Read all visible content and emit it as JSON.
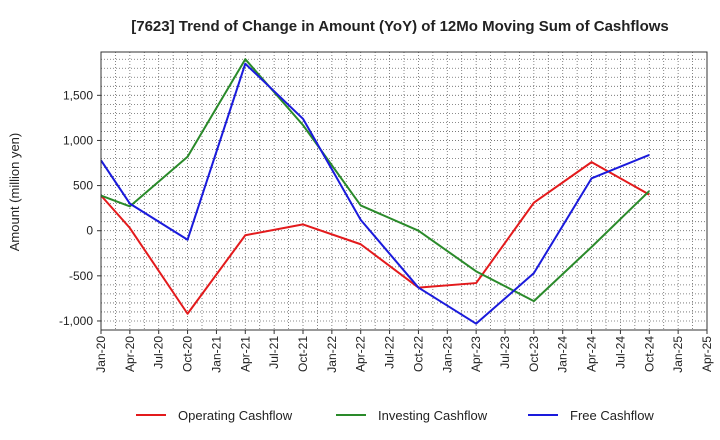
{
  "chart_data": {
    "type": "line",
    "title": "[7623]  Trend of Change in Amount (YoY) of 12Mo Moving Sum of Cashflows",
    "xlabel": "",
    "ylabel": "Amount (million yen)",
    "categories": [
      "Jan-20",
      "Apr-20",
      "Jul-20",
      "Oct-20",
      "Jan-21",
      "Apr-21",
      "Jul-21",
      "Oct-21",
      "Jan-22",
      "Apr-22",
      "Jul-22",
      "Oct-22",
      "Jan-23",
      "Apr-23",
      "Jul-23",
      "Oct-23",
      "Jan-24",
      "Apr-24",
      "Jul-24",
      "Oct-24",
      "Jan-25",
      "Apr-25"
    ],
    "ylim": [
      -1100,
      1980
    ],
    "yticks": [
      1500,
      1000,
      500,
      0,
      -500,
      -1000
    ],
    "ytick_labels": [
      "1,500",
      "1,000",
      "500",
      "0",
      "-500",
      "-1,000"
    ],
    "grid": true,
    "legend_position": "bottom",
    "series": [
      {
        "name": "Operating Cashflow",
        "color": "#e31a1c",
        "points": [
          [
            "Jan-20",
            390
          ],
          [
            "Apr-20",
            30
          ],
          [
            "Oct-20",
            -920
          ],
          [
            "Apr-21",
            -50
          ],
          [
            "Oct-21",
            70
          ],
          [
            "Apr-22",
            -150
          ],
          [
            "Oct-22",
            -630
          ],
          [
            "Apr-23",
            -580
          ],
          [
            "Oct-23",
            310
          ],
          [
            "Apr-24",
            760
          ],
          [
            "Oct-24",
            400
          ]
        ]
      },
      {
        "name": "Investing Cashflow",
        "color": "#2a8a2a",
        "points": [
          [
            "Jan-20",
            390
          ],
          [
            "Apr-20",
            270
          ],
          [
            "Oct-20",
            820
          ],
          [
            "Apr-21",
            1900
          ],
          [
            "Oct-21",
            1170
          ],
          [
            "Apr-22",
            280
          ],
          [
            "Oct-22",
            0
          ],
          [
            "Apr-23",
            -450
          ],
          [
            "Oct-23",
            -780
          ],
          [
            "Apr-24",
            -180
          ],
          [
            "Oct-24",
            440
          ]
        ]
      },
      {
        "name": "Free Cashflow",
        "color": "#1a1adc",
        "points": [
          [
            "Jan-20",
            780
          ],
          [
            "Apr-20",
            300
          ],
          [
            "Oct-20",
            -100
          ],
          [
            "Apr-21",
            1850
          ],
          [
            "Oct-21",
            1240
          ],
          [
            "Apr-22",
            120
          ],
          [
            "Oct-22",
            -630
          ],
          [
            "Apr-23",
            -1030
          ],
          [
            "Oct-23",
            -470
          ],
          [
            "Apr-24",
            580
          ],
          [
            "Oct-24",
            840
          ]
        ]
      }
    ]
  }
}
